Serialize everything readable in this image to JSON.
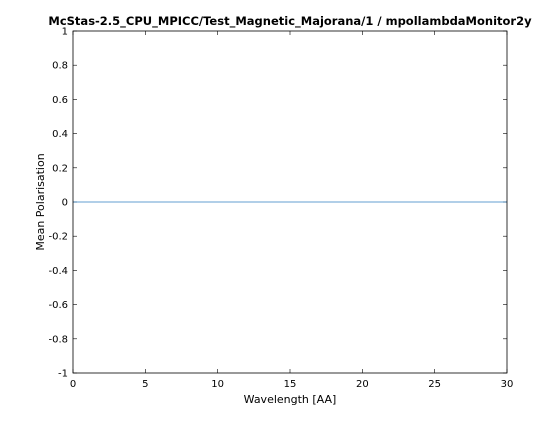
{
  "chart_data": {
    "type": "line",
    "title": "McStas-2.5_CPU_MPICC/Test_Magnetic_Majorana/1 / mpollambdaMonitor2y",
    "xlabel": "Wavelength [AA]",
    "ylabel": "Mean Polarisation",
    "xlim": [
      0,
      30
    ],
    "ylim": [
      -1,
      1
    ],
    "xticks": [
      0,
      5,
      10,
      15,
      20,
      25,
      30
    ],
    "yticks": [
      -1,
      -0.8,
      -0.6,
      -0.4,
      -0.2,
      0,
      0.2,
      0.4,
      0.6,
      0.8,
      1
    ],
    "grid": false,
    "series": [
      {
        "color": "#2f7fc1",
        "x": [
          0,
          30
        ],
        "y": [
          0,
          0
        ]
      }
    ]
  }
}
